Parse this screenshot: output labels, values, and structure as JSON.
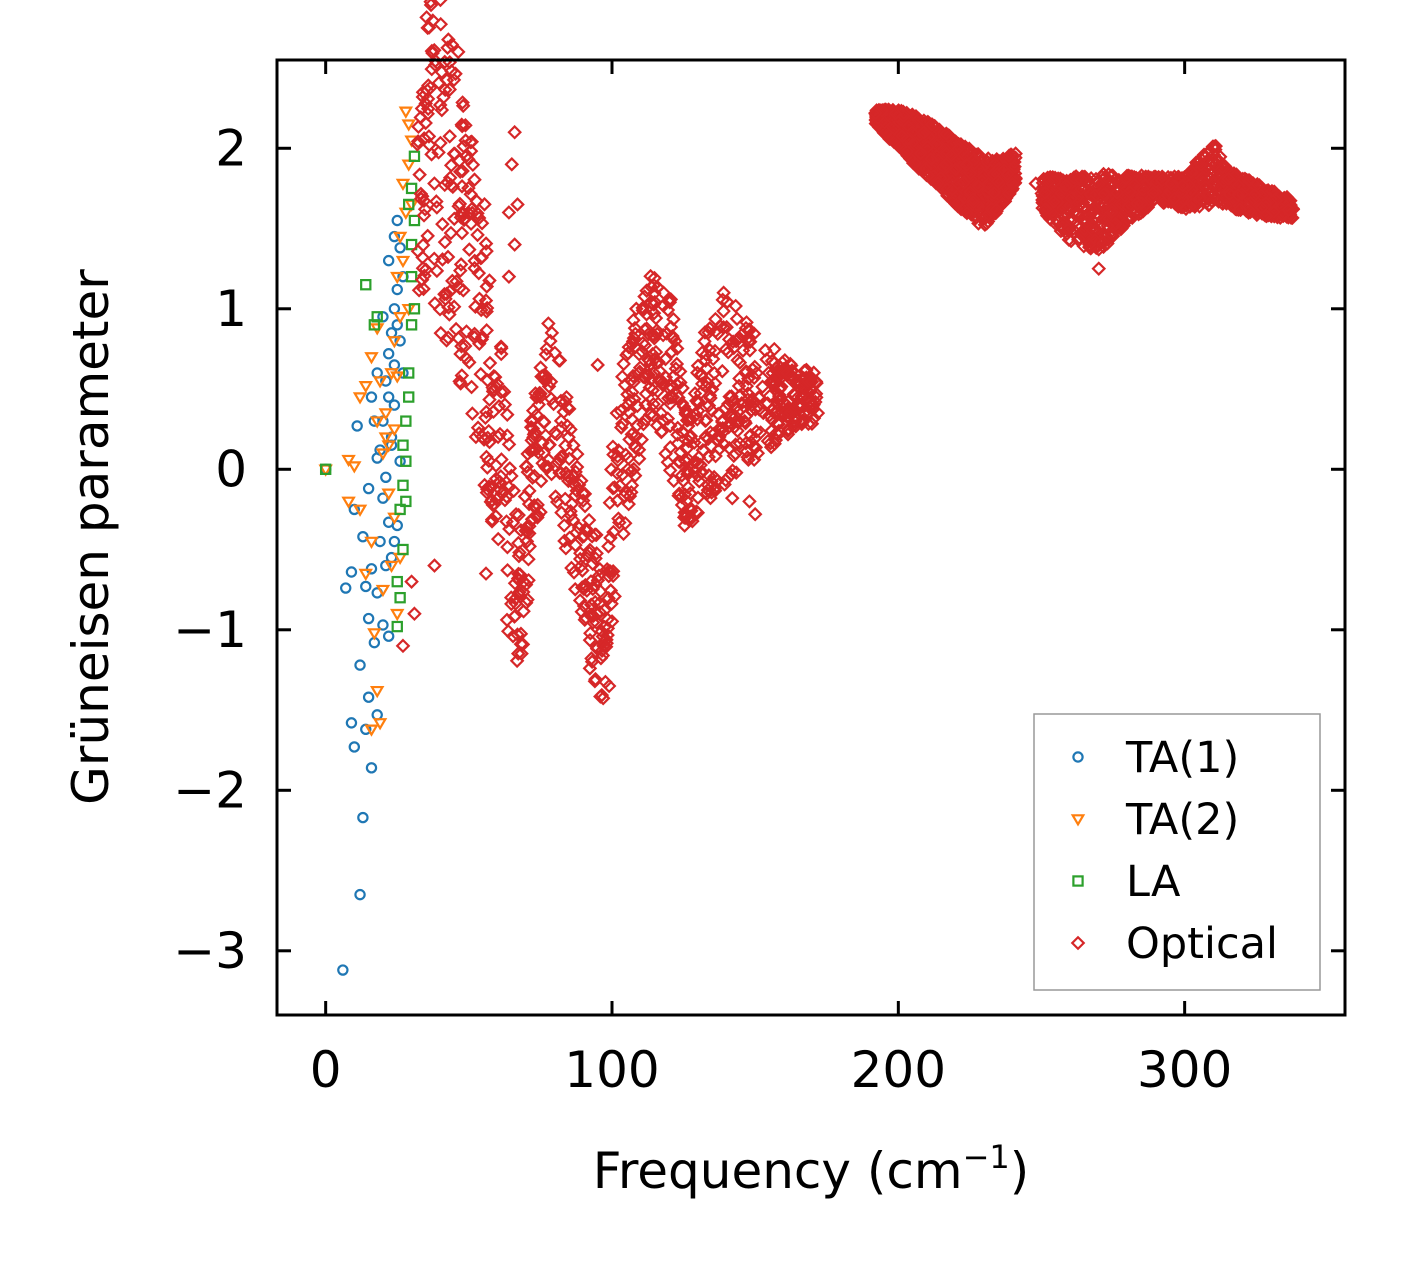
{
  "chart_data": {
    "type": "scatter",
    "title": "",
    "xlabel": "Frequency (cm",
    "xlabel_sup": "−1",
    "xlabel_close": ")",
    "ylabel": "Grüneisen parameter",
    "xlim": [
      -17,
      356
    ],
    "ylim": [
      -3.4,
      2.55
    ],
    "x_ticks": [
      {
        "value": 0,
        "label": "0"
      },
      {
        "value": 100,
        "label": "100"
      },
      {
        "value": 200,
        "label": "200"
      },
      {
        "value": 300,
        "label": "300"
      }
    ],
    "y_ticks": [
      {
        "value": -3,
        "label": "−3"
      },
      {
        "value": -2,
        "label": "−2"
      },
      {
        "value": -1,
        "label": "−1"
      },
      {
        "value": 0,
        "label": "0"
      },
      {
        "value": 1,
        "label": "1"
      },
      {
        "value": 2,
        "label": "2"
      }
    ],
    "grid": false,
    "legend_position": "lower-right",
    "series": [
      {
        "name": "TA(1)",
        "marker": "circle",
        "color": "#1f77b4",
        "points": [
          [
            0,
            0
          ],
          [
            6,
            -3.12
          ],
          [
            12,
            -2.65
          ],
          [
            13,
            -2.17
          ],
          [
            10,
            -1.73
          ],
          [
            9,
            -1.58
          ],
          [
            14,
            -1.62
          ],
          [
            16,
            -1.86
          ],
          [
            15,
            -1.42
          ],
          [
            18,
            -1.53
          ],
          [
            12,
            -1.22
          ],
          [
            7,
            -0.74
          ],
          [
            9,
            -0.64
          ],
          [
            14,
            -0.73
          ],
          [
            16,
            -0.62
          ],
          [
            18,
            -0.77
          ],
          [
            20,
            -0.97
          ],
          [
            22,
            -1.04
          ],
          [
            15,
            -0.93
          ],
          [
            17,
            -1.08
          ],
          [
            13,
            -0.42
          ],
          [
            15,
            -0.12
          ],
          [
            10,
            -0.25
          ],
          [
            18,
            0.07
          ],
          [
            20,
            -0.18
          ],
          [
            22,
            -0.33
          ],
          [
            24,
            -0.45
          ],
          [
            11,
            0.27
          ],
          [
            16,
            0.45
          ],
          [
            18,
            0.6
          ],
          [
            20,
            0.3
          ],
          [
            21,
            0.55
          ],
          [
            22,
            0.72
          ],
          [
            23,
            0.85
          ],
          [
            24,
            1.0
          ],
          [
            25,
            1.12
          ],
          [
            22,
            1.3
          ],
          [
            24,
            1.45
          ],
          [
            26,
            1.38
          ],
          [
            25,
            1.55
          ],
          [
            19,
            0.12
          ],
          [
            21,
            -0.05
          ],
          [
            23,
            0.2
          ],
          [
            24,
            0.4
          ],
          [
            26,
            0.8
          ],
          [
            27,
            1.2
          ],
          [
            21,
            -0.6
          ],
          [
            23,
            -0.55
          ],
          [
            25,
            -0.35
          ],
          [
            19,
            -0.45
          ],
          [
            20,
            0.95
          ],
          [
            26,
            0.05
          ],
          [
            17,
            0.3
          ],
          [
            24,
            0.65
          ],
          [
            22,
            0.45
          ],
          [
            23,
            0.15
          ],
          [
            25,
            0.9
          ],
          [
            27,
            0.6
          ]
        ]
      },
      {
        "name": "TA(2)",
        "marker": "triangle-down",
        "color": "#ff7f0e",
        "points": [
          [
            0,
            0
          ],
          [
            8,
            0.06
          ],
          [
            10,
            0.02
          ],
          [
            8,
            -0.2
          ],
          [
            12,
            -0.25
          ],
          [
            16,
            -0.45
          ],
          [
            14,
            -0.65
          ],
          [
            16,
            -1.62
          ],
          [
            18,
            -1.38
          ],
          [
            19,
            -1.58
          ],
          [
            17,
            -1.02
          ],
          [
            20,
            -0.75
          ],
          [
            12,
            0.45
          ],
          [
            14,
            0.52
          ],
          [
            16,
            0.7
          ],
          [
            18,
            0.88
          ],
          [
            19,
            0.55
          ],
          [
            21,
            0.35
          ],
          [
            22,
            0.15
          ],
          [
            24,
            0.25
          ],
          [
            25,
            0.58
          ],
          [
            26,
            0.95
          ],
          [
            27,
            1.3
          ],
          [
            28,
            1.6
          ],
          [
            29,
            1.9
          ],
          [
            28,
            2.23
          ],
          [
            29,
            2.15
          ],
          [
            30,
            2.05
          ],
          [
            27,
            1.78
          ],
          [
            26,
            1.45
          ],
          [
            25,
            1.2
          ],
          [
            24,
            0.8
          ],
          [
            23,
            0.6
          ],
          [
            20,
            0.1
          ],
          [
            22,
            -0.15
          ],
          [
            24,
            -0.3
          ],
          [
            26,
            -0.55
          ],
          [
            25,
            -0.9
          ],
          [
            23,
            -0.6
          ],
          [
            21,
            0.2
          ],
          [
            18,
            0.3
          ],
          [
            29,
            1.0
          ],
          [
            30,
            1.65
          ]
        ]
      },
      {
        "name": "LA",
        "marker": "square",
        "color": "#2ca02c",
        "points": [
          [
            0,
            0
          ],
          [
            14,
            1.15
          ],
          [
            17,
            0.9
          ],
          [
            18,
            0.95
          ],
          [
            25,
            -0.7
          ],
          [
            26,
            -0.8
          ],
          [
            25,
            -0.98
          ],
          [
            27,
            -0.5
          ],
          [
            26,
            -0.25
          ],
          [
            27,
            -0.1
          ],
          [
            28,
            0.05
          ],
          [
            28,
            0.3
          ],
          [
            29,
            0.6
          ],
          [
            30,
            0.9
          ],
          [
            30,
            1.2
          ],
          [
            31,
            1.55
          ],
          [
            30,
            1.75
          ],
          [
            31,
            1.95
          ],
          [
            29,
            0.45
          ],
          [
            28,
            -0.2
          ],
          [
            27,
            0.15
          ],
          [
            30,
            1.4
          ],
          [
            31,
            1.0
          ],
          [
            29,
            1.65
          ]
        ]
      },
      {
        "name": "Optical",
        "marker": "diamond",
        "color": "#d62728",
        "points": [
          [
            40,
            2.27
          ],
          [
            27,
            -1.1
          ],
          [
            30,
            -0.7
          ],
          [
            31,
            -0.9
          ],
          [
            38,
            -0.6
          ],
          [
            99,
            -1.35
          ],
          [
            66,
            2.1
          ],
          [
            65,
            1.9
          ],
          [
            64,
            1.6
          ],
          [
            67,
            1.65
          ],
          [
            66,
            1.4
          ],
          [
            64,
            1.2
          ],
          [
            150,
            -0.28
          ],
          [
            148,
            -0.2
          ],
          [
            142,
            -0.18
          ],
          [
            270,
            1.25
          ],
          [
            248,
            1.78
          ],
          [
            192,
            2.22
          ],
          [
            67,
            -1.03
          ],
          [
            97,
            -1.1
          ],
          [
            118,
            1.1
          ],
          [
            139,
            1.1
          ],
          [
            79,
            0.85
          ],
          [
            95,
            0.65
          ],
          [
            56,
            -0.65
          ]
        ],
        "bands": [
          {
            "center": [
              [
                32,
                2.1
              ],
              [
                40,
                1.95
              ],
              [
                50,
                1.4
              ],
              [
                57,
                0.6
              ],
              [
                63,
                -0.2
              ],
              [
                68,
                -0.85
              ],
              [
                72,
                -0.1
              ],
              [
                78,
                0.5
              ],
              [
                84,
                0.0
              ],
              [
                90,
                -0.6
              ],
              [
                97,
                -1.05
              ],
              [
                100,
                -0.4
              ],
              [
                106,
                0.35
              ],
              [
                114,
                0.8
              ],
              [
                121,
                0.5
              ],
              [
                126,
                0.0
              ],
              [
                133,
                0.35
              ],
              [
                140,
                0.5
              ],
              [
                150,
                0.45
              ],
              [
                160,
                0.45
              ],
              [
                172,
                0.45
              ]
            ],
            "halfwidth": [
              [
                32,
                1.0
              ],
              [
                40,
                1.1
              ],
              [
                50,
                1.0
              ],
              [
                57,
                0.85
              ],
              [
                63,
                0.75
              ],
              [
                68,
                0.5
              ],
              [
                72,
                0.5
              ],
              [
                78,
                0.45
              ],
              [
                84,
                0.55
              ],
              [
                90,
                0.55
              ],
              [
                97,
                0.45
              ],
              [
                100,
                0.55
              ],
              [
                106,
                0.55
              ],
              [
                114,
                0.45
              ],
              [
                121,
                0.55
              ],
              [
                126,
                0.4
              ],
              [
                133,
                0.55
              ],
              [
                140,
                0.6
              ],
              [
                150,
                0.4
              ],
              [
                160,
                0.25
              ],
              [
                172,
                0.15
              ]
            ]
          },
          {
            "center": [
              [
                192,
                2.2
              ],
              [
                200,
                2.12
              ],
              [
                210,
                2.0
              ],
              [
                220,
                1.85
              ],
              [
                230,
                1.72
              ],
              [
                236,
                1.78
              ],
              [
                241,
                1.88
              ]
            ],
            "halfwidth": [
              [
                192,
                0.05
              ],
              [
                200,
                0.12
              ],
              [
                210,
                0.18
              ],
              [
                220,
                0.2
              ],
              [
                230,
                0.22
              ],
              [
                236,
                0.15
              ],
              [
                241,
                0.1
              ]
            ]
          },
          {
            "center": [
              [
                250,
                1.72
              ],
              [
                260,
                1.62
              ],
              [
                270,
                1.6
              ],
              [
                280,
                1.68
              ],
              [
                290,
                1.75
              ],
              [
                300,
                1.72
              ],
              [
                310,
                1.85
              ],
              [
                315,
                1.75
              ],
              [
                325,
                1.68
              ],
              [
                338,
                1.62
              ]
            ],
            "halfwidth": [
              [
                250,
                0.1
              ],
              [
                260,
                0.2
              ],
              [
                270,
                0.25
              ],
              [
                280,
                0.15
              ],
              [
                290,
                0.08
              ],
              [
                300,
                0.1
              ],
              [
                310,
                0.2
              ],
              [
                315,
                0.12
              ],
              [
                325,
                0.1
              ],
              [
                338,
                0.06
              ]
            ]
          }
        ],
        "density": 3200
      }
    ],
    "legend": [
      {
        "label": "TA(1)",
        "marker": "circle",
        "color": "#1f77b4"
      },
      {
        "label": "TA(2)",
        "marker": "triangle-down",
        "color": "#ff7f0e"
      },
      {
        "label": "LA",
        "marker": "square",
        "color": "#2ca02c"
      },
      {
        "label": "Optical",
        "marker": "diamond",
        "color": "#d62728"
      }
    ]
  }
}
